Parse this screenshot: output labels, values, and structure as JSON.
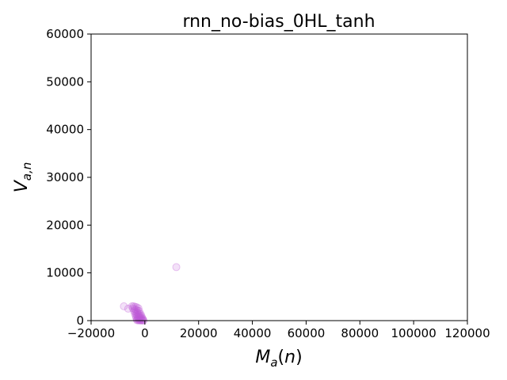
{
  "chart_data": {
    "type": "scatter",
    "title": "rnn_no-bias_0HL_tanh",
    "xlabel": "M_a(n)",
    "ylabel": "V_{a,n}",
    "xlim": [
      -20000,
      120000
    ],
    "ylim": [
      0,
      60000
    ],
    "x_ticks": [
      "−20000",
      "0",
      "20000",
      "40000",
      "60000",
      "80000",
      "100000",
      "120000"
    ],
    "x_tick_values": [
      -20000,
      0,
      20000,
      40000,
      60000,
      80000,
      100000,
      120000
    ],
    "y_ticks": [
      "0",
      "10000",
      "20000",
      "30000",
      "40000",
      "50000",
      "60000"
    ],
    "y_tick_values": [
      0,
      10000,
      20000,
      30000,
      40000,
      50000,
      60000
    ],
    "grid": false,
    "legend": "none",
    "marker_color": "#bf5bd6",
    "series": [
      {
        "points": [
          [
            11700,
            11200
          ],
          [
            -7800,
            3000
          ],
          [
            -6200,
            2500
          ],
          [
            -4800,
            3000
          ],
          [
            -4200,
            3000
          ],
          [
            -3600,
            2900
          ],
          [
            -3000,
            2800
          ],
          [
            -2400,
            2600
          ],
          [
            -4500,
            2600
          ],
          [
            -3900,
            2400
          ],
          [
            -3300,
            2300
          ],
          [
            -2700,
            2100
          ],
          [
            -2100,
            2000
          ],
          [
            -4000,
            2000
          ],
          [
            -3400,
            1800
          ],
          [
            -2800,
            1700
          ],
          [
            -2200,
            1500
          ],
          [
            -1600,
            1400
          ],
          [
            -3700,
            1500
          ],
          [
            -3100,
            1300
          ],
          [
            -2500,
            1200
          ],
          [
            -1900,
            1100
          ],
          [
            -1300,
            1000
          ],
          [
            -3400,
            1000
          ],
          [
            -2800,
            900
          ],
          [
            -2200,
            800
          ],
          [
            -1600,
            700
          ],
          [
            -1000,
            600
          ],
          [
            -3200,
            600
          ],
          [
            -2600,
            500
          ],
          [
            -2000,
            450
          ],
          [
            -1400,
            400
          ],
          [
            -800,
            350
          ],
          [
            -3000,
            250
          ],
          [
            -2400,
            200
          ],
          [
            -1800,
            150
          ],
          [
            -1200,
            120
          ],
          [
            -600,
            100
          ],
          [
            -2900,
            60
          ],
          [
            -2300,
            40
          ],
          [
            -1700,
            30
          ],
          [
            -1100,
            20
          ],
          [
            -500,
            10
          ]
        ]
      }
    ]
  }
}
